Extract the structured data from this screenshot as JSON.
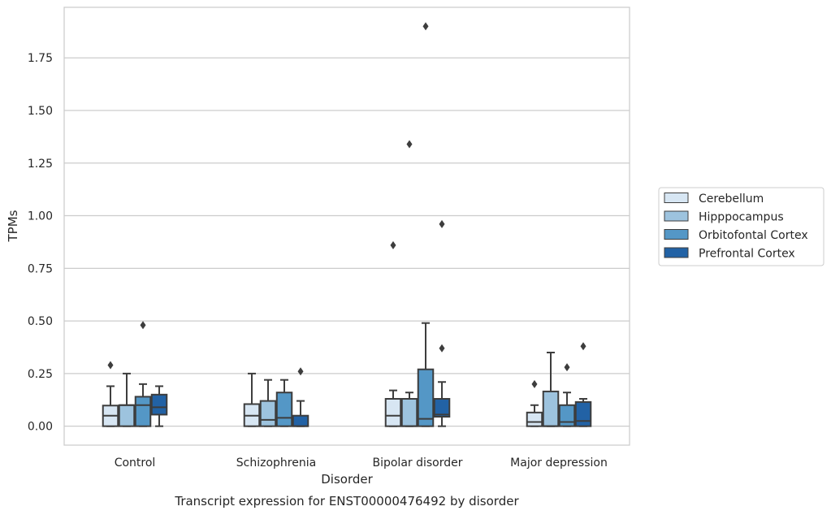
{
  "chart_data": {
    "type": "box",
    "title": "",
    "caption": "Transcript expression for ENST00000476492 by disorder",
    "xlabel": "Disorder",
    "ylabel": "TPMs",
    "ylim": [
      -0.09,
      1.99
    ],
    "yticks": [
      "0.00",
      "0.25",
      "0.50",
      "0.75",
      "1.00",
      "1.25",
      "1.50",
      "1.75"
    ],
    "grid": "horizontal",
    "legend_position": "right",
    "categories": [
      "Control",
      "Schizophrenia",
      "Bipolar disorder",
      "Major depression"
    ],
    "series": [
      {
        "name": "Cerebellum",
        "color": "#d7e6f3",
        "boxes": [
          {
            "whisker_low": 0.0,
            "q1": 0.0,
            "median": 0.05,
            "q3": 0.098,
            "whisker_high": 0.19,
            "outliers": [
              0.29
            ]
          },
          {
            "whisker_low": 0.0,
            "q1": 0.0,
            "median": 0.05,
            "q3": 0.105,
            "whisker_high": 0.25,
            "outliers": []
          },
          {
            "whisker_low": 0.0,
            "q1": 0.0,
            "median": 0.05,
            "q3": 0.13,
            "whisker_high": 0.17,
            "outliers": [
              0.86
            ]
          },
          {
            "whisker_low": 0.0,
            "q1": 0.0,
            "median": 0.02,
            "q3": 0.065,
            "whisker_high": 0.1,
            "outliers": [
              0.2
            ]
          }
        ]
      },
      {
        "name": "Hipppocampus",
        "color": "#9dc3de",
        "boxes": [
          {
            "whisker_low": 0.0,
            "q1": 0.0,
            "median": 0.1,
            "q3": 0.1,
            "whisker_high": 0.25,
            "outliers": []
          },
          {
            "whisker_low": 0.0,
            "q1": 0.0,
            "median": 0.03,
            "q3": 0.12,
            "whisker_high": 0.22,
            "outliers": []
          },
          {
            "whisker_low": 0.0,
            "q1": 0.0,
            "median": 0.0,
            "q3": 0.13,
            "whisker_high": 0.16,
            "outliers": [
              1.34
            ]
          },
          {
            "whisker_low": 0.0,
            "q1": 0.0,
            "median": 0.0,
            "q3": 0.165,
            "whisker_high": 0.35,
            "outliers": []
          }
        ]
      },
      {
        "name": "Orbitofontal Cortex",
        "color": "#5497c6",
        "boxes": [
          {
            "whisker_low": 0.0,
            "q1": 0.0,
            "median": 0.1,
            "q3": 0.14,
            "whisker_high": 0.2,
            "outliers": [
              0.48
            ]
          },
          {
            "whisker_low": 0.0,
            "q1": 0.0,
            "median": 0.04,
            "q3": 0.16,
            "whisker_high": 0.22,
            "outliers": []
          },
          {
            "whisker_low": 0.0,
            "q1": 0.0,
            "median": 0.035,
            "q3": 0.27,
            "whisker_high": 0.49,
            "outliers": [
              1.9
            ]
          },
          {
            "whisker_low": 0.0,
            "q1": 0.0,
            "median": 0.02,
            "q3": 0.1,
            "whisker_high": 0.16,
            "outliers": [
              0.28
            ]
          }
        ]
      },
      {
        "name": "Prefrontal Cortex",
        "color": "#2262a5",
        "boxes": [
          {
            "whisker_low": 0.0,
            "q1": 0.055,
            "median": 0.09,
            "q3": 0.15,
            "whisker_high": 0.19,
            "outliers": []
          },
          {
            "whisker_low": 0.0,
            "q1": 0.0,
            "median": 0.0,
            "q3": 0.05,
            "whisker_high": 0.12,
            "outliers": [
              0.26
            ]
          },
          {
            "whisker_low": 0.0,
            "q1": 0.045,
            "median": 0.055,
            "q3": 0.13,
            "whisker_high": 0.21,
            "outliers": [
              0.37,
              0.96
            ]
          },
          {
            "whisker_low": 0.0,
            "q1": 0.0,
            "median": 0.025,
            "q3": 0.115,
            "whisker_high": 0.13,
            "outliers": [
              0.38
            ]
          }
        ]
      }
    ]
  }
}
